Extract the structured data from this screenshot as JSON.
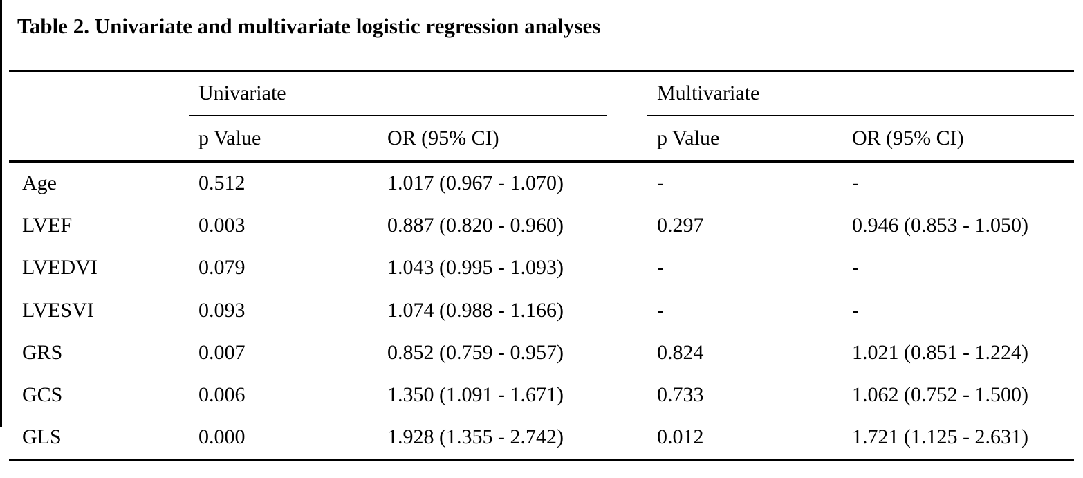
{
  "title": "Table 2. Univariate and multivariate logistic regression analyses",
  "table": {
    "group_headers": {
      "univariate": "Univariate",
      "multivariate": "Multivariate"
    },
    "column_headers": {
      "p_value": "p Value",
      "or_ci": "OR (95% CI)"
    },
    "rows": [
      {
        "variable": "Age",
        "uni_p": "0.512",
        "uni_or": "1.017 (0.967 - 1.070)",
        "multi_p": "-",
        "multi_or": "-"
      },
      {
        "variable": "LVEF",
        "uni_p": "0.003",
        "uni_or": "0.887 (0.820 - 0.960)",
        "multi_p": "0.297",
        "multi_or": "0.946 (0.853 - 1.050)"
      },
      {
        "variable": "LVEDVI",
        "uni_p": "0.079",
        "uni_or": "1.043 (0.995 - 1.093)",
        "multi_p": "-",
        "multi_or": "-"
      },
      {
        "variable": "LVESVI",
        "uni_p": "0.093",
        "uni_or": "1.074 (0.988 - 1.166)",
        "multi_p": "-",
        "multi_or": "-"
      },
      {
        "variable": "GRS",
        "uni_p": "0.007",
        "uni_or": "0.852 (0.759 - 0.957)",
        "multi_p": "0.824",
        "multi_or": "1.021 (0.851 - 1.224)"
      },
      {
        "variable": "GCS",
        "uni_p": "0.006",
        "uni_or": "1.350 (1.091 - 1.671)",
        "multi_p": "0.733",
        "multi_or": "1.062 (0.752 - 1.500)"
      },
      {
        "variable": "GLS",
        "uni_p": "0.000",
        "uni_or": "1.928 (1.355 - 2.742)",
        "multi_p": "0.012",
        "multi_or": "1.721 (1.125 - 2.631)"
      }
    ]
  },
  "colors": {
    "background": "#ffffff",
    "text": "#000000",
    "rule": "#000000"
  }
}
